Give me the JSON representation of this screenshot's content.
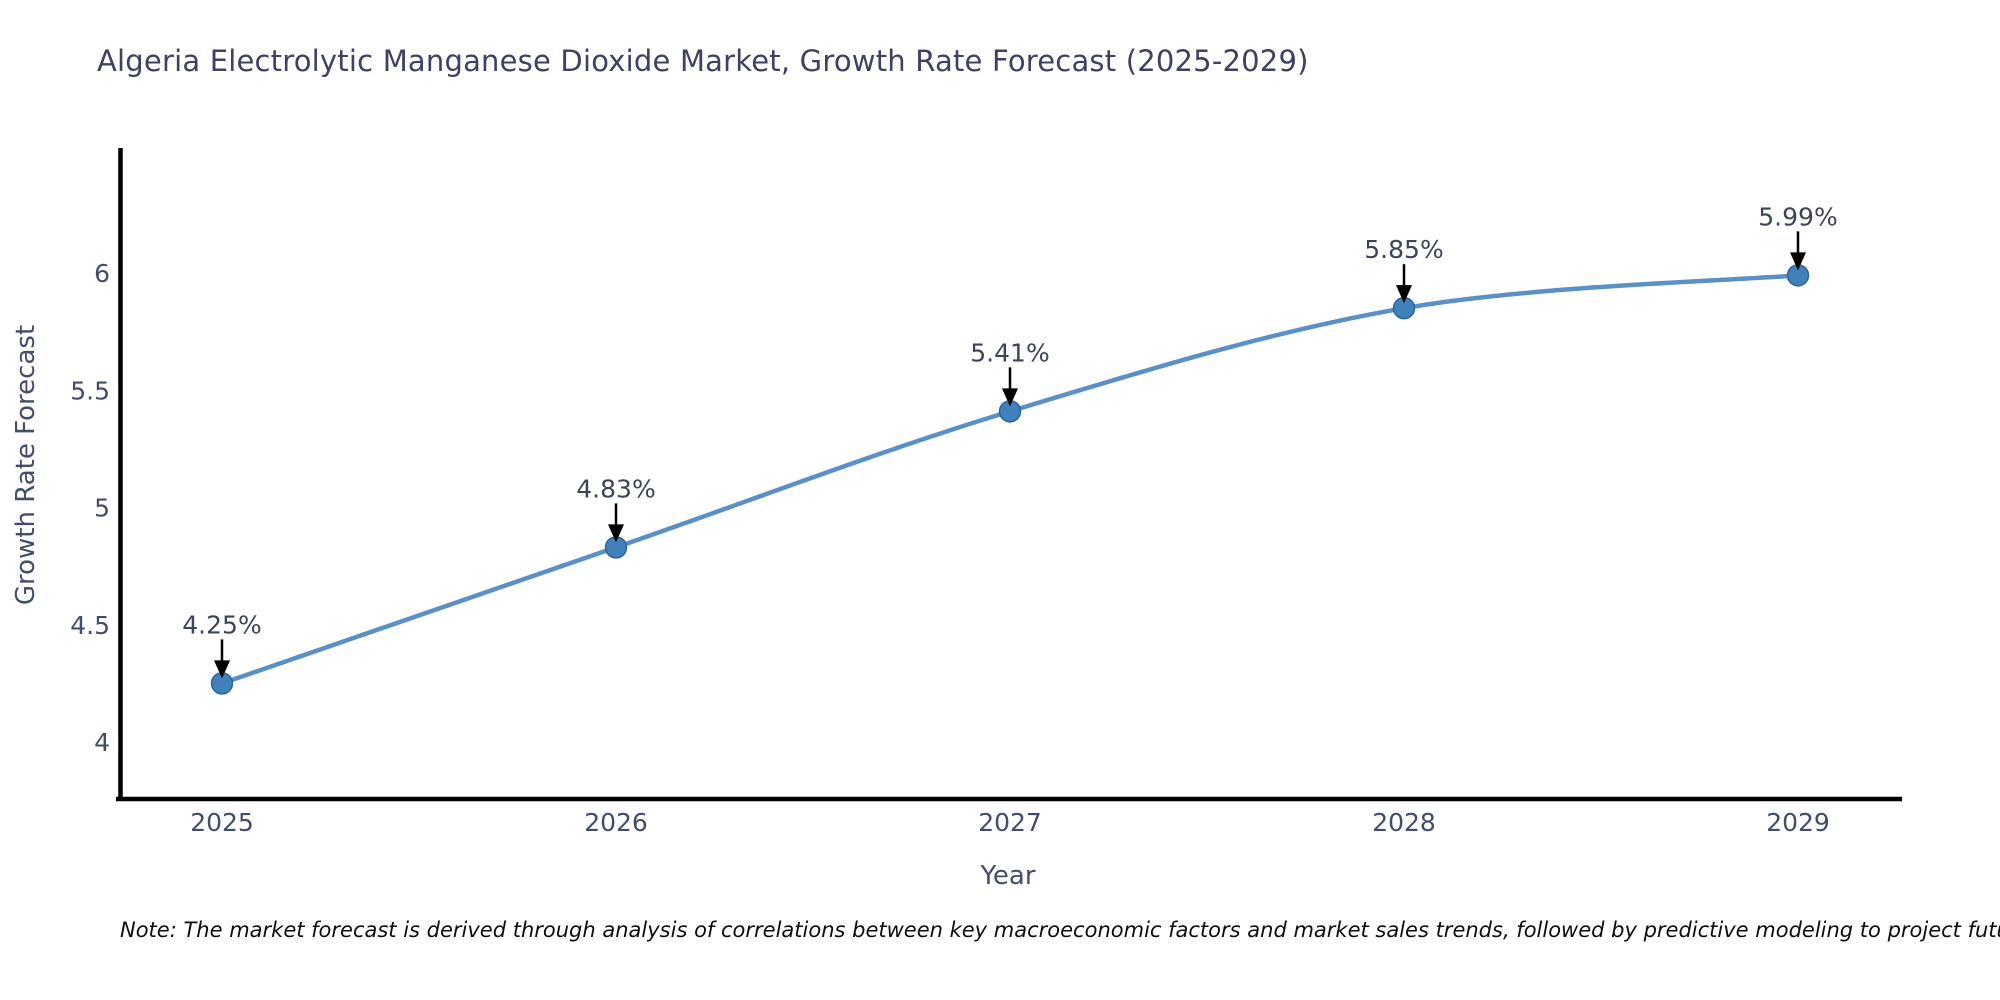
{
  "title": {
    "text": "Algeria Electrolytic Manganese Dioxide Market, Growth Rate Forecast (2025-2029)"
  },
  "note": {
    "text": "Note: The market forecast is derived through analysis of correlations between key macroeconomic factors and market sales trends, followed by predictive modeling to project future sales"
  },
  "chart_data": {
    "type": "line",
    "title": "Algeria Electrolytic Manganese Dioxide Market, Growth Rate Forecast (2025-2029)",
    "xlabel": "Year",
    "ylabel": "Growth Rate Forecast",
    "x": [
      2025,
      2026,
      2027,
      2028,
      2029
    ],
    "values": [
      4.25,
      4.83,
      5.41,
      5.85,
      5.99
    ],
    "point_labels": [
      "4.25%",
      "4.83%",
      "5.41%",
      "5.85%",
      "5.99%"
    ],
    "x_tick_labels": [
      "2025",
      "2026",
      "2027",
      "2028",
      "2029"
    ],
    "y_ticks": [
      4,
      4.5,
      5,
      5.5,
      6
    ],
    "ylim": [
      3.75,
      6.53
    ],
    "line_shape": "spline",
    "grid": false,
    "legend_position": "none",
    "annotations_have_arrows": true,
    "colors": {
      "line": "#5a90c5",
      "marker": "#4181bb",
      "marker_edge": "#2e6496",
      "axis_line": "#000000",
      "arrow": "#000000",
      "tick_text": "#424d68",
      "title_text": "#3e4260",
      "note_text": "#0e0e0e"
    }
  }
}
